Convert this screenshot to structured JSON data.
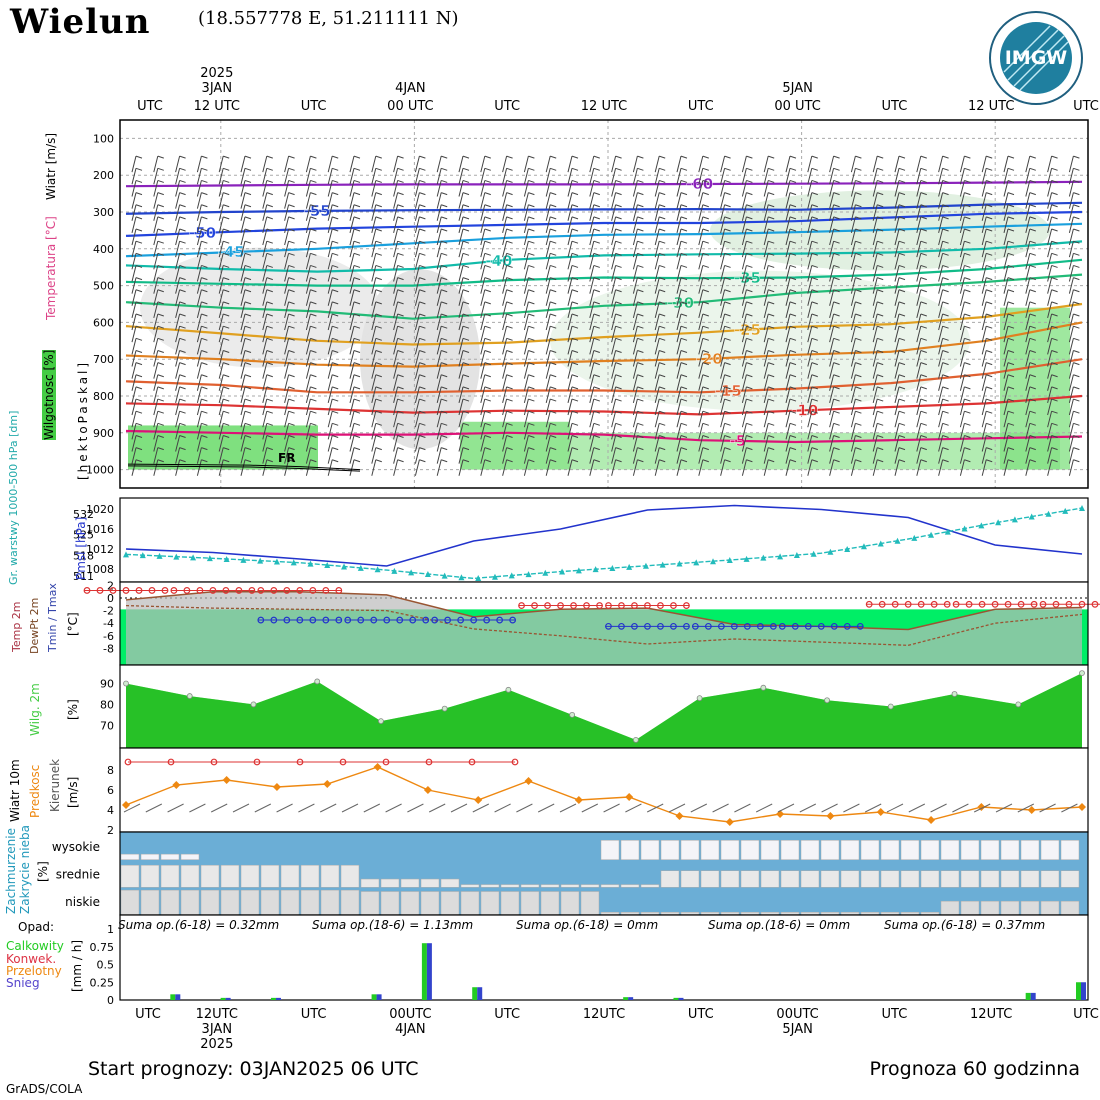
{
  "header": {
    "station": "Wielun",
    "coords": "(18.557778 E, 51.211111 N)",
    "logo_text": "IMGW",
    "logo_ring": "INSTYTUT METEOROLOGII I GOSPODARKI WODNEJ · PANSTWOWY INSTYTUT BADAWCZY"
  },
  "time_axis": {
    "top_labels": [
      {
        "line1": "",
        "line2": "",
        "line3": "UTC",
        "i": 0
      },
      {
        "line1": "2025",
        "line2": "3JAN",
        "line3": "12 UTC",
        "i": 1
      },
      {
        "line1": "",
        "line2": "",
        "line3": "UTC",
        "i": 2
      },
      {
        "line1": "",
        "line2": "4JAN",
        "line3": "00 UTC",
        "i": 3
      },
      {
        "line1": "",
        "line2": "",
        "line3": "UTC",
        "i": 4
      },
      {
        "line1": "",
        "line2": "",
        "line3": "12 UTC",
        "i": 5
      },
      {
        "line1": "",
        "line2": "",
        "line3": "UTC",
        "i": 6
      },
      {
        "line1": "",
        "line2": "5JAN",
        "line3": "00 UTC",
        "i": 7
      },
      {
        "line1": "",
        "line2": "",
        "line3": "UTC",
        "i": 8
      },
      {
        "line1": "",
        "line2": "",
        "line3": "12 UTC",
        "i": 9
      },
      {
        "line1": "",
        "line2": "",
        "line3": "UTC",
        "i": 10
      }
    ],
    "bottom_labels": [
      {
        "line1": "UTC",
        "line2": "",
        "line3": "",
        "i": 0
      },
      {
        "line1": "12UTC",
        "line2": "3JAN",
        "line3": "2025",
        "i": 1
      },
      {
        "line1": "UTC",
        "line2": "",
        "line3": "",
        "i": 2
      },
      {
        "line1": "00UTC",
        "line2": "4JAN",
        "line3": "",
        "i": 3
      },
      {
        "line1": "UTC",
        "line2": "",
        "line3": "",
        "i": 4
      },
      {
        "line1": "12UTC",
        "line2": "",
        "line3": "",
        "i": 5
      },
      {
        "line1": "UTC",
        "line2": "",
        "line3": "",
        "i": 6
      },
      {
        "line1": "00UTC",
        "line2": "5JAN",
        "line3": "",
        "i": 7
      },
      {
        "line1": "UTC",
        "line2": "",
        "line3": "",
        "i": 8
      },
      {
        "line1": "12UTC",
        "line2": "",
        "line3": "",
        "i": 9
      },
      {
        "line1": "UTC",
        "line2": "",
        "line3": "",
        "i": 10
      }
    ]
  },
  "panels": {
    "upper": {
      "side_labels": {
        "wind": "Wiatr [m/s]",
        "temp": "Temperatura [°C]",
        "hum": "Wilgotnosc [%]",
        "press": "[hektoPaskal]"
      },
      "pressure_ticks": [
        "100",
        "200",
        "300",
        "400",
        "500",
        "600",
        "700",
        "800",
        "900",
        "1000"
      ],
      "fr_label": "FR"
    },
    "pmsl": {
      "side_labels": {
        "geo": "Gr. warstwy 1000-500 hPa [dm]",
        "pmsl": "Pmsl [hPa]"
      },
      "left_ticks": [
        "532",
        "525",
        "518",
        "511"
      ],
      "right_ticks": [
        "1020",
        "1016",
        "1012",
        "1008"
      ]
    },
    "temp2m": {
      "side_labels": {
        "t": "Temp 2m",
        "d": "DewPt 2m",
        "tm": "Tmin / Tmax",
        "unit": "[°C]"
      },
      "ticks": [
        "2",
        "0",
        "-2",
        "-4",
        "-6",
        "-8"
      ]
    },
    "rh": {
      "side_labels": {
        "name": "Wilg. 2m",
        "unit": "[%]"
      },
      "ticks": [
        "90",
        "80",
        "70"
      ]
    },
    "wind10": {
      "side_labels": {
        "name": "Wiatr 10m",
        "speed": "Predkosc",
        "dir": "Kierunek",
        "unit": "[m/s]"
      },
      "ticks": [
        "8",
        "6",
        "4",
        "2"
      ]
    },
    "clouds": {
      "side_labels": {
        "name": "Zachmurzenie",
        "name2": "Zakrycie nieba",
        "unit": "[%]"
      },
      "levels": [
        "wysokie",
        "srednie",
        "niskie"
      ]
    },
    "precip": {
      "side_labels": {
        "title": "Opad:",
        "total": "Calkowity",
        "conv": "Konwek.",
        "over": "Przelotny",
        "snow": "Snieg",
        "unit": "[mm / h]"
      },
      "ticks": [
        "1",
        "0.75",
        "0.5",
        "0.25",
        "0"
      ],
      "sums": [
        "Suma op.(6-18) = 0.32mm",
        "Suma op.(18-6) = 1.13mm",
        "Suma op.(6-18) = 0mm",
        "Suma op.(18-6) = 0mm",
        "Suma op.(6-18) = 0.37mm"
      ]
    }
  },
  "footer": {
    "start": "Start prognozy: 03JAN2025 06 UTC",
    "forecast": "Prognoza 60 godzinna",
    "credit": "GrADS/COLA"
  },
  "colors": {
    "humidity_fill": "#7fe07f",
    "pmsl": "#2233cc",
    "geopotential": "#22bbbb",
    "temp_green": "#00ee66",
    "tmax": "#dd3333",
    "tmin": "#2233cc",
    "rh_dark": "#11aa11",
    "rh_light": "#44dd44",
    "wind_speed": "#ee8811",
    "cloud": "#6baed6"
  },
  "chart_data": [
    {
      "type": "area",
      "name": "vertical-profile",
      "ylabel": "[hektoPaskal]",
      "ylim": [
        1050,
        50
      ],
      "temperature_isotherms": [
        {
          "label": "-60",
          "color": "#8a22bb",
          "y": [
            230,
            228,
            226,
            225,
            225,
            225,
            224,
            223,
            222,
            220,
            218
          ]
        },
        {
          "label": "-55",
          "color": "#2244cc",
          "y": [
            305,
            300,
            297,
            295,
            294,
            293,
            292,
            294,
            288,
            280,
            275
          ]
        },
        {
          "label": "-50",
          "color": "#2244dd",
          "y": [
            365,
            355,
            345,
            340,
            335,
            330,
            330,
            325,
            315,
            305,
            300
          ]
        },
        {
          "label": "-45",
          "color": "#1aa0dd",
          "y": [
            420,
            410,
            400,
            385,
            370,
            362,
            360,
            355,
            348,
            340,
            332
          ]
        },
        {
          "label": "-40",
          "color": "#11bbaa",
          "y": [
            445,
            455,
            462,
            455,
            430,
            418,
            415,
            413,
            410,
            400,
            380
          ]
        },
        {
          "label": "-35",
          "color": "#11bb88",
          "y": [
            490,
            495,
            500,
            500,
            485,
            478,
            480,
            478,
            470,
            455,
            430
          ]
        },
        {
          "label": "-30",
          "color": "#22bb77",
          "y": [
            545,
            560,
            570,
            590,
            575,
            555,
            545,
            520,
            505,
            490,
            470
          ]
        },
        {
          "label": "-25",
          "color": "#e0a020",
          "y": [
            610,
            630,
            650,
            660,
            655,
            640,
            628,
            612,
            605,
            585,
            550
          ]
        },
        {
          "label": "-20",
          "color": "#e08020",
          "y": [
            690,
            700,
            715,
            720,
            712,
            705,
            700,
            688,
            680,
            650,
            600
          ]
        },
        {
          "label": "-15",
          "color": "#e06030",
          "y": [
            760,
            770,
            790,
            790,
            785,
            785,
            790,
            780,
            765,
            740,
            700
          ]
        },
        {
          "label": "-10",
          "color": "#dd3333",
          "y": [
            820,
            825,
            835,
            845,
            840,
            842,
            850,
            840,
            830,
            820,
            800
          ]
        },
        {
          "label": "-5",
          "color": "#dd1177",
          "y": [
            895,
            900,
            905,
            905,
            900,
            905,
            920,
            925,
            920,
            915,
            910
          ]
        }
      ]
    },
    {
      "type": "line",
      "name": "pmsl-geopotential",
      "series": [
        {
          "name": "Pmsl [hPa]",
          "values": [
            1012.0,
            1011.3,
            1010.0,
            1008.6,
            1013.6,
            1016.0,
            1019.8,
            1020.7,
            1019.9,
            1018.3,
            1012.8,
            1011.0
          ]
        },
        {
          "name": "Gr. warstwy 1000-500 hPa [dm]",
          "values": [
            518.3,
            517.0,
            515.5,
            513.0,
            510.2,
            512.5,
            514.5,
            516.5,
            518.7,
            523.5,
            529.0,
            534.0
          ]
        }
      ]
    },
    {
      "type": "line",
      "name": "temperature-2m",
      "series": [
        {
          "name": "Temp 2m",
          "values": [
            -0.3,
            1.0,
            1.0,
            0.5,
            -3.0,
            -1.8,
            -1.6,
            -4.2,
            -4.5,
            -5.0,
            -1.8,
            -1.5
          ]
        },
        {
          "name": "DewPt 2m",
          "values": [
            -1.2,
            -1.6,
            -1.8,
            -2.0,
            -4.9,
            -6.0,
            -7.3,
            -6.5,
            -7.0,
            -7.5,
            -4.0,
            -2.6
          ]
        },
        {
          "name": "Tmax",
          "values": [
            1.2,
            1.2,
            1.2,
            null,
            null,
            -1.2,
            -1.2,
            null,
            null,
            -1.0,
            -1.0,
            -1.0
          ]
        },
        {
          "name": "Tmin",
          "values": [
            null,
            null,
            -3.5,
            -3.5,
            -3.5,
            null,
            -4.5,
            -4.5,
            -4.5,
            null,
            null,
            null
          ]
        }
      ]
    },
    {
      "type": "area",
      "name": "humidity-2m",
      "series": [
        {
          "name": "Wilg. 2m",
          "values": [
            90,
            84,
            80,
            91,
            72,
            78,
            87,
            75,
            63,
            83,
            88,
            82,
            79,
            85,
            80,
            95
          ]
        }
      ]
    },
    {
      "type": "line",
      "name": "wind-10m",
      "series": [
        {
          "name": "Predkosc",
          "values": [
            4.5,
            6.5,
            7.0,
            6.3,
            6.6,
            8.3,
            6.0,
            5.0,
            6.9,
            5.0,
            5.3,
            3.4,
            2.8,
            3.6,
            3.4,
            3.8,
            3.0,
            4.3,
            4.0,
            4.3
          ]
        },
        {
          "name": "Tmax bar",
          "values": [
            8.8,
            8.8,
            8.8,
            8.8,
            8.8,
            8.8,
            8.8,
            8.8,
            8.8,
            8.8
          ]
        }
      ]
    },
    {
      "type": "bar",
      "name": "precipitation",
      "ylim": [
        0,
        1
      ],
      "series": [
        {
          "name": "Calkowity",
          "values": [
            0.0,
            0.08,
            0.03,
            0.03,
            0.0,
            0.08,
            0.8,
            0.18,
            0.0,
            0.0,
            0.04,
            0.03,
            0.0,
            0.0,
            0.0,
            0.0,
            0.0,
            0.0,
            0.1,
            0.25
          ]
        }
      ]
    }
  ]
}
